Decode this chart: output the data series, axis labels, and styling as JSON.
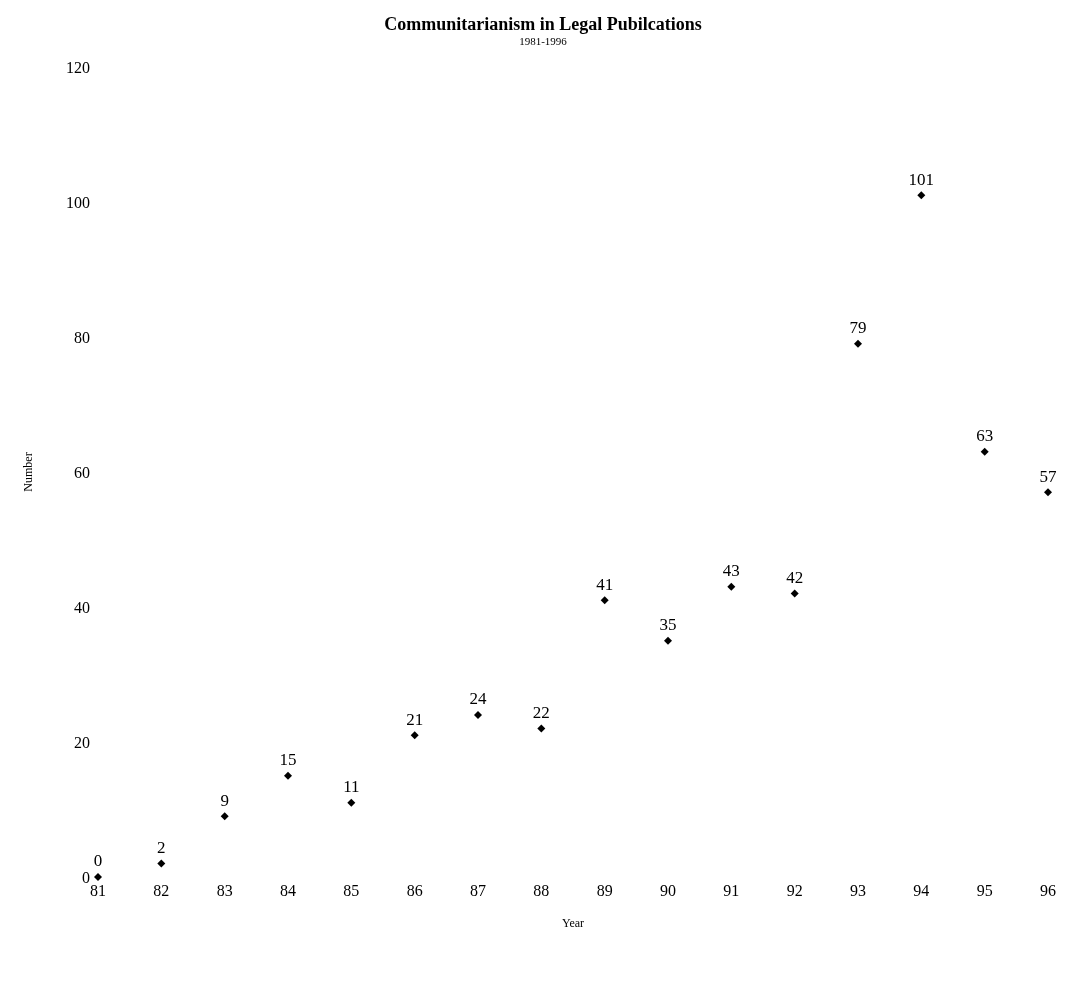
{
  "chart_data": {
    "type": "scatter",
    "title": "Communitarianism in Legal Pubilcations",
    "subtitle": "1981-1996",
    "xlabel": "Year",
    "ylabel": "Number",
    "categories": [
      "81",
      "82",
      "83",
      "84",
      "85",
      "86",
      "87",
      "88",
      "89",
      "90",
      "91",
      "92",
      "93",
      "94",
      "95",
      "96"
    ],
    "values": [
      0,
      2,
      9,
      15,
      11,
      21,
      24,
      22,
      41,
      35,
      43,
      42,
      79,
      101,
      63,
      57
    ],
    "color": "#000000",
    "marker": "diamond",
    "data_labels": true,
    "ylim": [
      0,
      120
    ],
    "yticks": [
      0,
      20,
      40,
      60,
      80,
      100,
      120
    ],
    "grid": false
  }
}
